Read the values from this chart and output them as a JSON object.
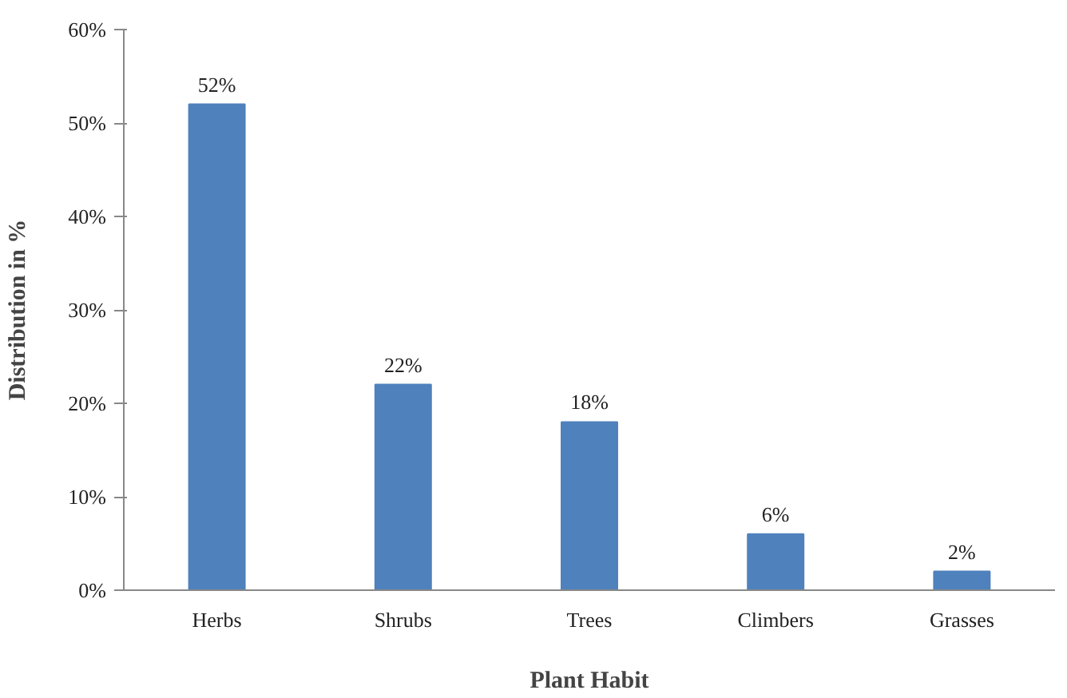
{
  "chart_data": {
    "type": "bar",
    "xlabel": "Plant Habit",
    "ylabel": "Distribution in %",
    "categories": [
      "Herbs",
      "Shrubs",
      "Trees",
      "Climbers",
      "Grasses"
    ],
    "values": [
      52,
      22,
      18,
      6,
      2
    ],
    "color": "#4f81bd",
    "value_labels": [
      "52%",
      "22%",
      "18%",
      "6%",
      "2%"
    ],
    "ylim": [
      0,
      60
    ],
    "yticks": [
      {
        "value": 0,
        "label": "0%"
      },
      {
        "value": 10,
        "label": "10%"
      },
      {
        "value": 20,
        "label": "20%"
      },
      {
        "value": 30,
        "label": "30%"
      },
      {
        "value": 40,
        "label": "40%"
      },
      {
        "value": 50,
        "label": "50%"
      },
      {
        "value": 60,
        "label": "60%"
      }
    ],
    "grid": false
  }
}
